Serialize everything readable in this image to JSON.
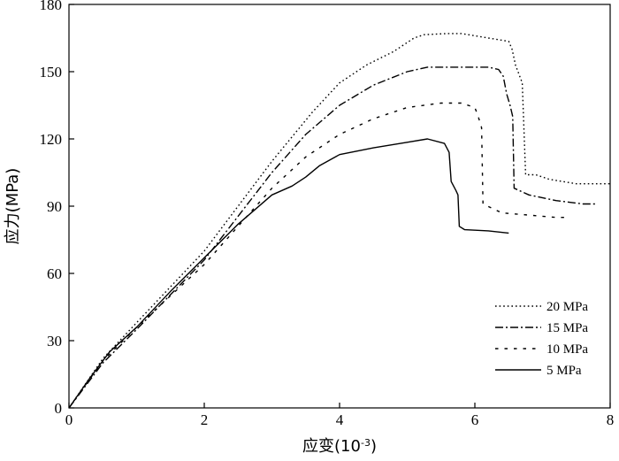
{
  "chart_data": {
    "type": "line",
    "xlabel": "应变(10",
    "xlabel_exponent": "-3",
    "xlabel_close": ")",
    "ylabel": "应力(MPa)",
    "xlim": [
      0,
      8
    ],
    "ylim": [
      0,
      180
    ],
    "xticks": [
      0,
      2,
      4,
      6,
      8
    ],
    "yticks": [
      0,
      30,
      60,
      90,
      120,
      150,
      180
    ],
    "grid": false,
    "legend_position": "bottom-right",
    "series": [
      {
        "name": "20 MPa",
        "dash": "dotted",
        "points": [
          [
            0,
            0
          ],
          [
            0.5,
            22
          ],
          [
            1,
            38
          ],
          [
            2,
            70
          ],
          [
            3,
            110
          ],
          [
            3.6,
            132
          ],
          [
            4,
            145
          ],
          [
            4.4,
            153
          ],
          [
            4.8,
            159
          ],
          [
            5.1,
            165
          ],
          [
            5.25,
            166.5
          ],
          [
            5.6,
            167
          ],
          [
            5.8,
            167
          ],
          [
            6.2,
            165
          ],
          [
            6.5,
            163.5
          ],
          [
            6.55,
            160
          ],
          [
            6.6,
            153
          ],
          [
            6.7,
            145
          ],
          [
            6.75,
            104
          ],
          [
            6.9,
            104
          ],
          [
            7.1,
            102
          ],
          [
            7.5,
            100
          ],
          [
            8,
            100
          ]
        ]
      },
      {
        "name": "15 MPa",
        "dash": "dashdot",
        "points": [
          [
            0,
            0
          ],
          [
            0.5,
            20
          ],
          [
            1,
            35
          ],
          [
            2,
            66
          ],
          [
            3,
            105
          ],
          [
            3.5,
            122
          ],
          [
            4,
            135
          ],
          [
            4.5,
            144
          ],
          [
            5,
            150
          ],
          [
            5.3,
            152
          ],
          [
            5.6,
            152
          ],
          [
            5.9,
            152
          ],
          [
            6.2,
            152
          ],
          [
            6.35,
            151
          ],
          [
            6.42,
            148
          ],
          [
            6.47,
            140
          ],
          [
            6.52,
            135
          ],
          [
            6.56,
            130
          ],
          [
            6.58,
            98
          ],
          [
            6.8,
            95
          ],
          [
            7.2,
            92.5
          ],
          [
            7.6,
            91
          ],
          [
            7.8,
            91
          ]
        ]
      },
      {
        "name": "10 MPa",
        "dash": "dashed",
        "points": [
          [
            0,
            0
          ],
          [
            0.5,
            21
          ],
          [
            1,
            36
          ],
          [
            2,
            64
          ],
          [
            3,
            98
          ],
          [
            3.5,
            112
          ],
          [
            4,
            122
          ],
          [
            4.5,
            129
          ],
          [
            5,
            134
          ],
          [
            5.5,
            136
          ],
          [
            5.8,
            136
          ],
          [
            6,
            134
          ],
          [
            6.05,
            130
          ],
          [
            6.1,
            125
          ],
          [
            6.12,
            91
          ],
          [
            6.4,
            87
          ],
          [
            6.8,
            86
          ],
          [
            7.2,
            85
          ],
          [
            7.4,
            85
          ]
        ]
      },
      {
        "name": "5 MPa",
        "dash": "solid",
        "points": [
          [
            0,
            0
          ],
          [
            0.3,
            13
          ],
          [
            0.6,
            25
          ],
          [
            1,
            36
          ],
          [
            1.5,
            52
          ],
          [
            2,
            67
          ],
          [
            2.5,
            82
          ],
          [
            3,
            95
          ],
          [
            3.3,
            99
          ],
          [
            3.5,
            103
          ],
          [
            3.7,
            108
          ],
          [
            4,
            113
          ],
          [
            4.5,
            116
          ],
          [
            5,
            118.5
          ],
          [
            5.3,
            120
          ],
          [
            5.55,
            118
          ],
          [
            5.62,
            114
          ],
          [
            5.65,
            101
          ],
          [
            5.72,
            97
          ],
          [
            5.75,
            95
          ],
          [
            5.77,
            81
          ],
          [
            5.85,
            79.5
          ],
          [
            6.2,
            79
          ],
          [
            6.5,
            78
          ]
        ]
      }
    ]
  }
}
